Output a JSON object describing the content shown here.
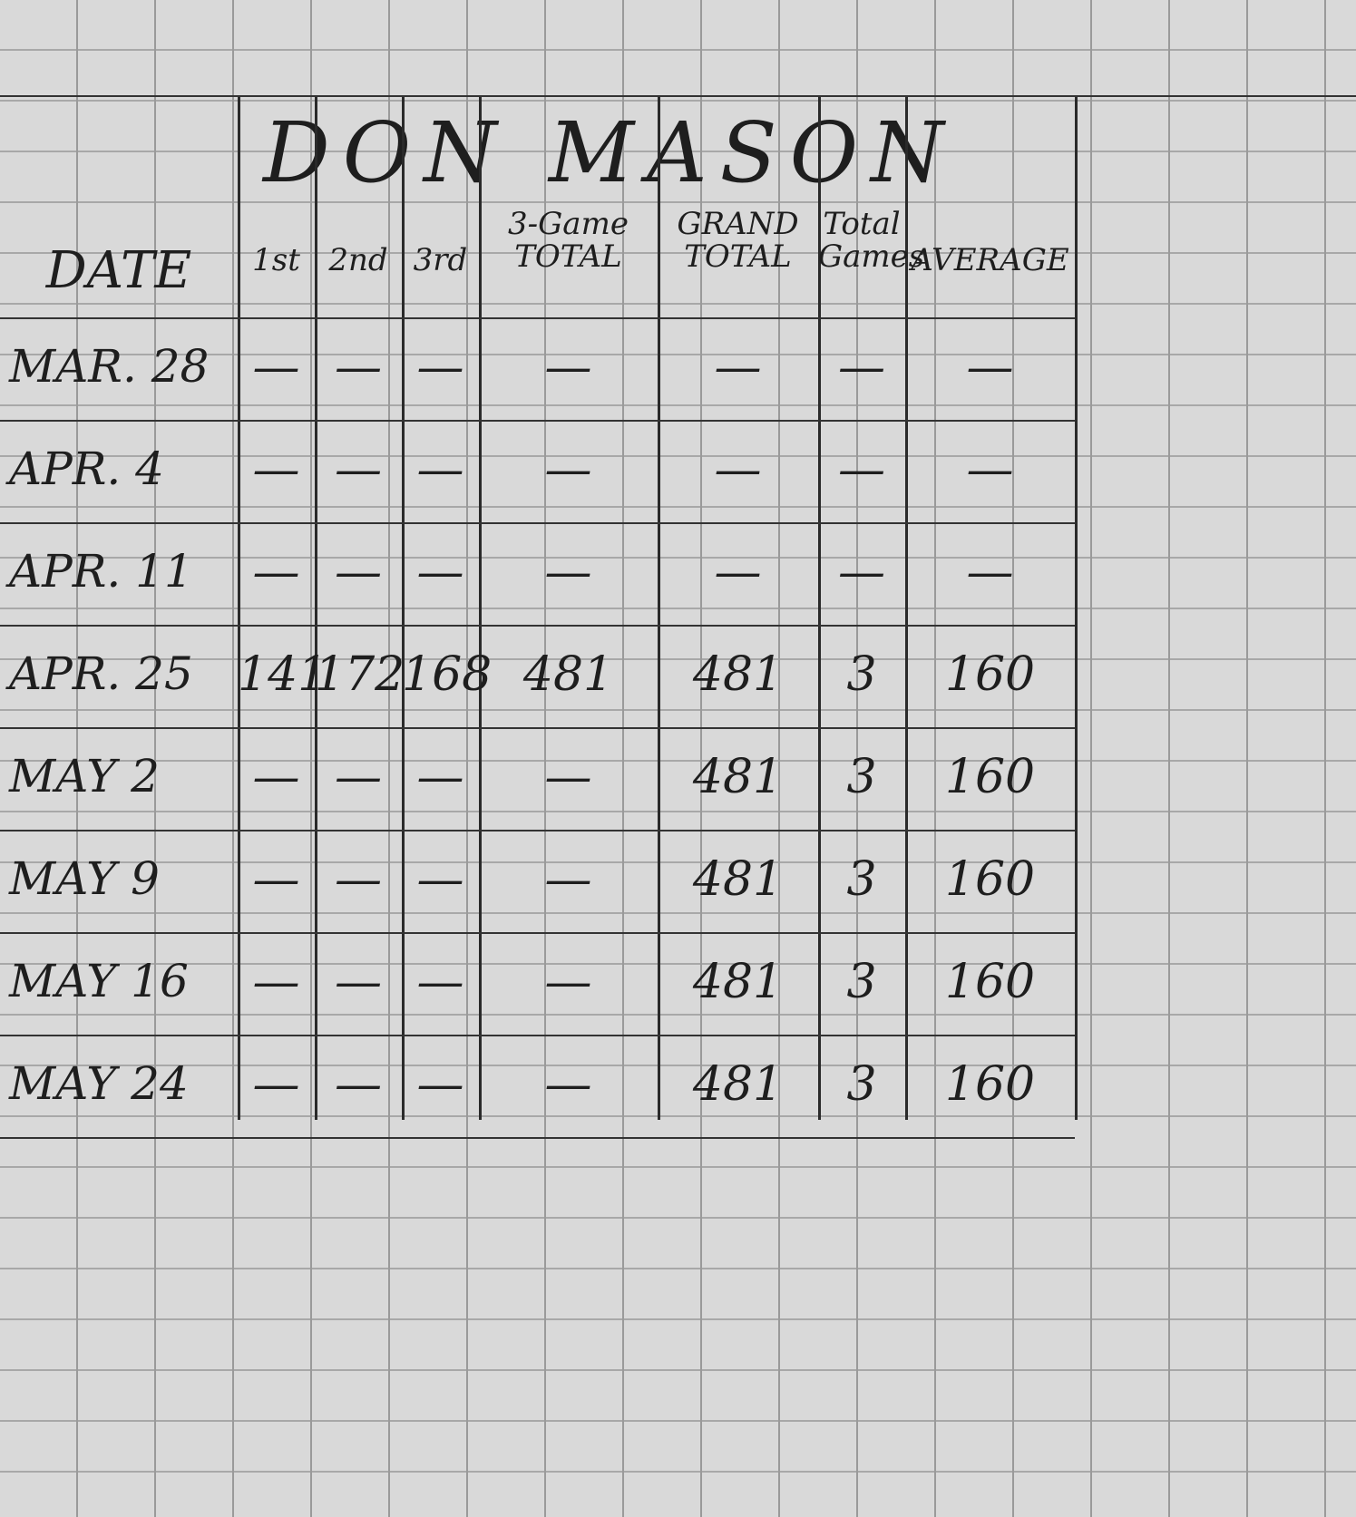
{
  "title": "DON MASON",
  "columns": [
    "DATE",
    "1st",
    "2nd",
    "3rd",
    "3-Game TOTAL",
    "GRAND TOTAL",
    "Total Games",
    "AVERAGE"
  ],
  "rows": [
    {
      "date": "MAR. 28",
      "g1": "—",
      "g2": "—",
      "g3": "—",
      "three_game_total": "—",
      "grand_total": "—",
      "total_games": "—",
      "average": "—"
    },
    {
      "date": "APR. 4",
      "g1": "—",
      "g2": "—",
      "g3": "—",
      "three_game_total": "—",
      "grand_total": "—",
      "total_games": "—",
      "average": "—"
    },
    {
      "date": "APR. 11",
      "g1": "—",
      "g2": "—",
      "g3": "—",
      "three_game_total": "—",
      "grand_total": "—",
      "total_games": "—",
      "average": "—"
    },
    {
      "date": "APR. 25",
      "g1": "141",
      "g2": "172",
      "g3": "168",
      "three_game_total": "481",
      "grand_total": "481",
      "total_games": "3",
      "average": "160"
    },
    {
      "date": "MAY 2",
      "g1": "—",
      "g2": "—",
      "g3": "—",
      "three_game_total": "—",
      "grand_total": "481",
      "total_games": "3",
      "average": "160"
    },
    {
      "date": "MAY 9",
      "g1": "—",
      "g2": "—",
      "g3": "—",
      "three_game_total": "—",
      "grand_total": "481",
      "total_games": "3",
      "average": "160"
    },
    {
      "date": "MAY 16",
      "g1": "—",
      "g2": "—",
      "g3": "—",
      "three_game_total": "—",
      "grand_total": "481",
      "total_games": "3",
      "average": "160"
    },
    {
      "date": "MAY 24",
      "g1": "—",
      "g2": "—",
      "g3": "—",
      "three_game_total": "—",
      "grand_total": "481",
      "total_games": "3",
      "average": "160"
    }
  ]
}
